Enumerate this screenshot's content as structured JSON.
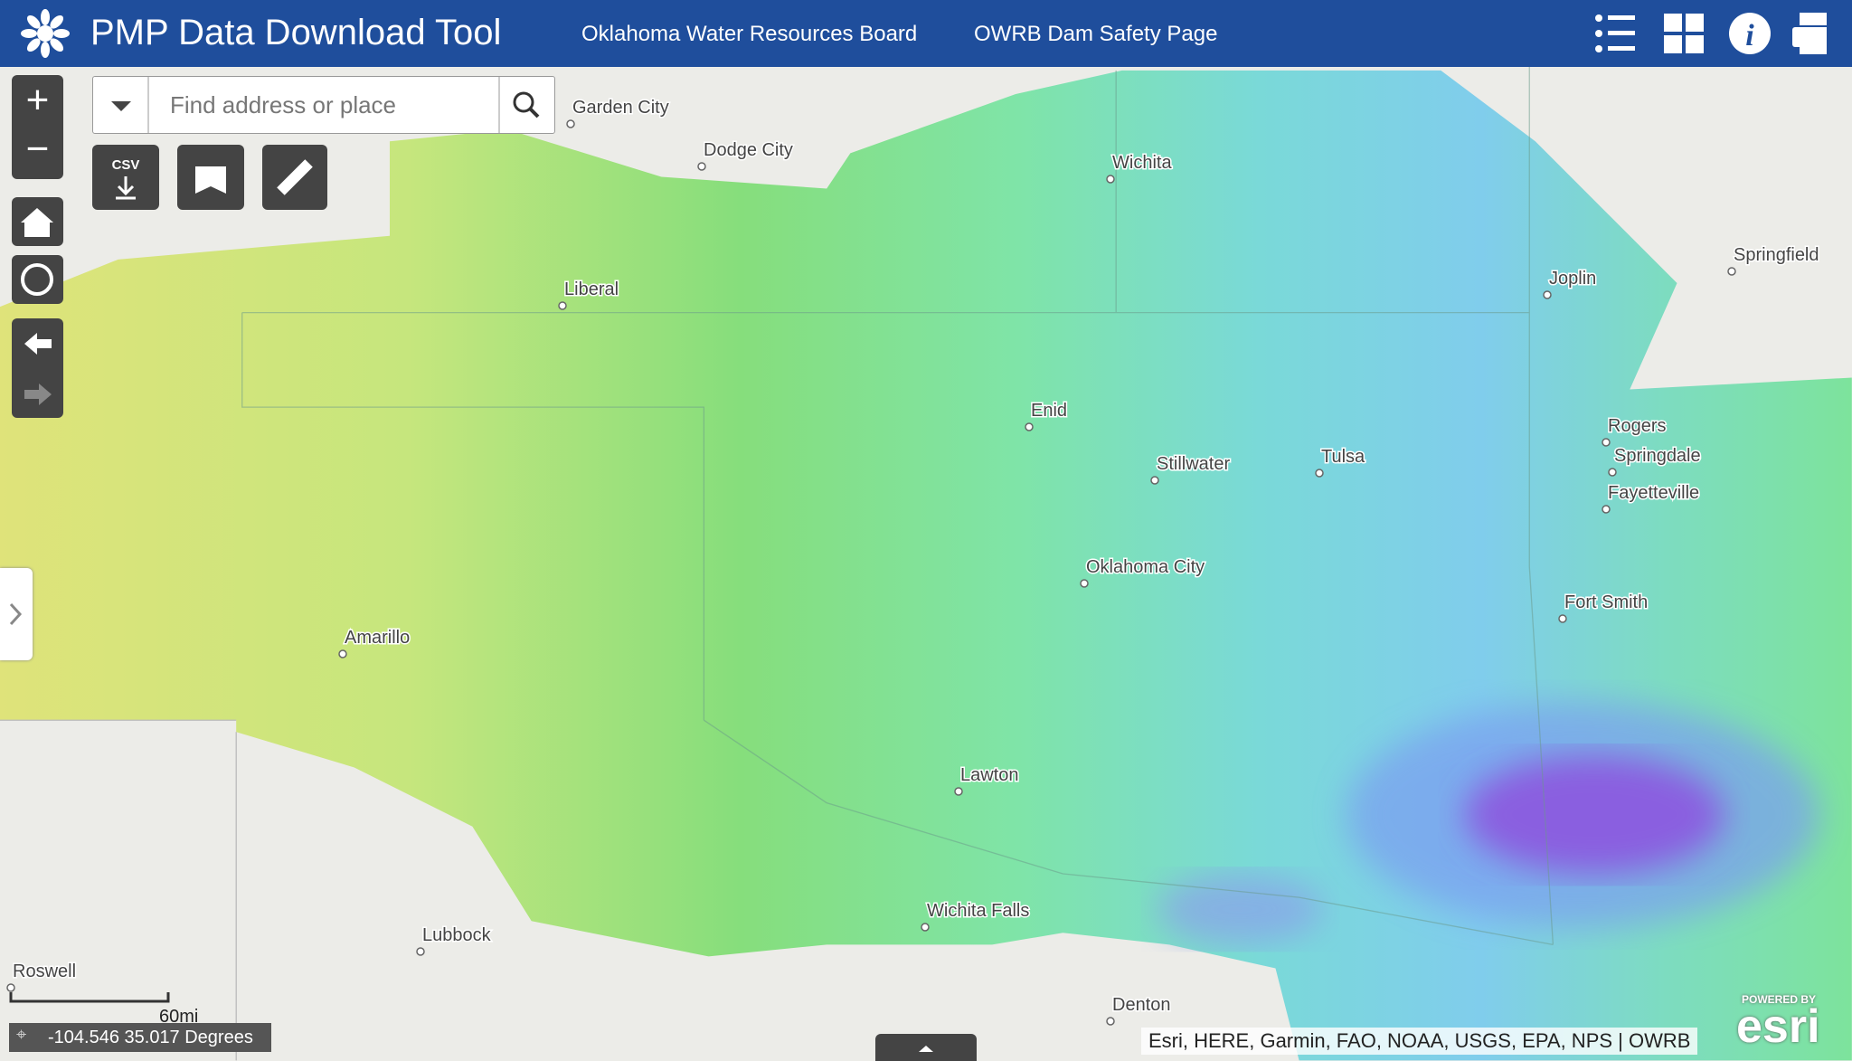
{
  "header": {
    "title": "PMP Data Download Tool",
    "links": [
      "Oklahoma Water Resources Board",
      "OWRB Dam Safety Page"
    ]
  },
  "search": {
    "placeholder": "Find address or place"
  },
  "tools": {
    "csv": "CSV"
  },
  "map": {
    "labels": [
      "Garden City",
      "Dodge City",
      "Wichita",
      "Springfield",
      "Joplin",
      "Liberal",
      "Enid",
      "Stillwater",
      "Tulsa",
      "Rogers",
      "Springdale",
      "Fayetteville",
      "Oklahoma City",
      "Fort Smith",
      "Amarillo",
      "Lawton",
      "Wichita Falls",
      "Lubbock",
      "Roswell",
      "Denton"
    ]
  },
  "footer": {
    "scale": "60mi",
    "coordinates": "-104.546 35.017 Degrees",
    "attribution": "Esri, HERE, Garmin, FAO, NOAA, USGS, EPA, NPS | OWRB",
    "powered_by": "POWERED BY",
    "logo": "esri"
  }
}
